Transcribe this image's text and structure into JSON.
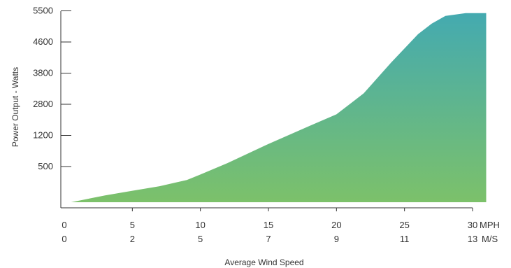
{
  "chart_data": {
    "type": "area",
    "xlabel": "Average Wind Speed",
    "ylabel": "Power Output - Watts",
    "y_tick_labels": [
      "500",
      "1200",
      "2800",
      "3800",
      "4600",
      "5500"
    ],
    "x_ticks_mph": [
      "0",
      "5",
      "10",
      "15",
      "20",
      "25",
      "30"
    ],
    "x_ticks_ms": [
      "0",
      "2",
      "5",
      "7",
      "9",
      "11",
      "13"
    ],
    "x_unit_mph": "MPH",
    "x_unit_ms": "M/S",
    "xlim": [
      0,
      30
    ],
    "series": [
      {
        "x": [
          0.5,
          3,
          5,
          7,
          9,
          10,
          12,
          15,
          18,
          20,
          22,
          24,
          26,
          27,
          28,
          29.5,
          31
        ],
        "y": [
          0,
          72,
          120,
          168,
          232,
          290,
          410,
          610,
          798,
          920,
          1140,
          1460,
          1760,
          1870,
          1950,
          1980,
          1980
        ]
      }
    ],
    "y_scale_note": "tick labels non-linear; y values expressed as height on tick index scale",
    "colors": {
      "top": "#44aab0",
      "bottom": "#7cc16a"
    }
  }
}
